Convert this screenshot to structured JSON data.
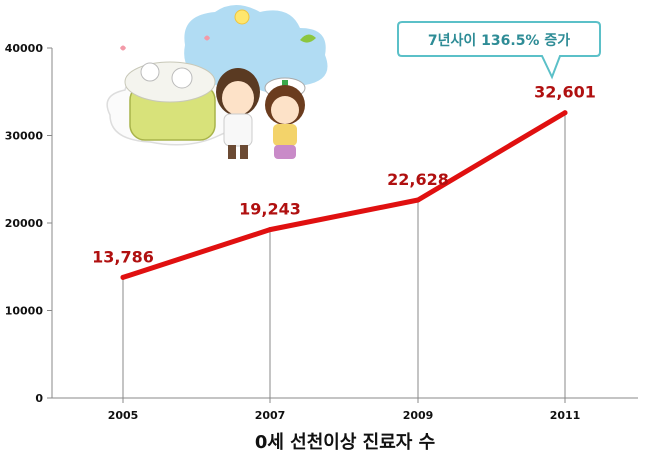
{
  "chart_data": {
    "type": "line",
    "categories": [
      "2005",
      "2007",
      "2009",
      "2011"
    ],
    "series": [
      {
        "values": [
          13786,
          19243,
          22628,
          32601
        ]
      }
    ],
    "data_labels": [
      "13,786",
      "19,243",
      "22,628",
      "32,601"
    ],
    "y_ticks": [
      "0",
      "10000",
      "20000",
      "30000",
      "40000"
    ],
    "ylim": [
      0,
      40000
    ],
    "xlabel": "0세 선천이상 진료자 수",
    "ylabel": "",
    "title": "",
    "grid": false,
    "annotation": "7년사이 136.5% 증가",
    "colors": {
      "line": "#e01010",
      "data_label": "#b01010",
      "drop_line": "#888888",
      "callout_border": "#5bc0c8",
      "callout_text": "#2e8c96"
    }
  },
  "illustration": {
    "description_icon": "cartoon-doctor-nurse-baby-illustration-icon"
  }
}
